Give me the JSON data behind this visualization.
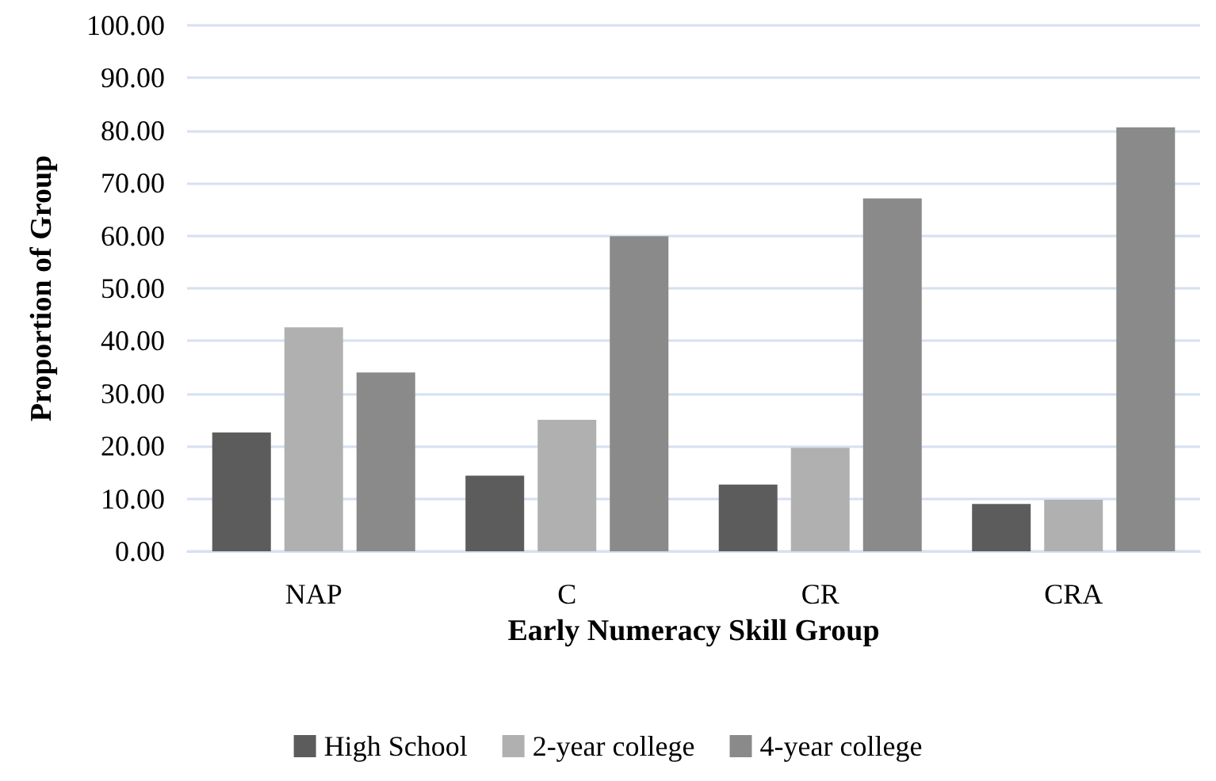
{
  "chart_data": {
    "type": "bar",
    "xlabel": "Early Numeracy Skill Group",
    "ylabel": "Proportion of Group",
    "categories": [
      "NAP",
      "C",
      "CR",
      "CRA"
    ],
    "series": [
      {
        "name": "High School",
        "color": "#5c5c5c",
        "values": [
          22.6,
          14.4,
          12.7,
          9.0
        ]
      },
      {
        "name": "2-year college",
        "color": "#b0b0b0",
        "values": [
          42.6,
          25.0,
          19.7,
          9.8
        ]
      },
      {
        "name": "4-year college",
        "color": "#8a8a8a",
        "values": [
          34.0,
          59.9,
          67.1,
          80.6
        ]
      }
    ],
    "ylim": [
      0,
      100
    ],
    "yticks": [
      {
        "value": 0,
        "label": "0.00"
      },
      {
        "value": 10,
        "label": "10.00"
      },
      {
        "value": 20,
        "label": "20.00"
      },
      {
        "value": 30,
        "label": "30.00"
      },
      {
        "value": 40,
        "label": "40.00"
      },
      {
        "value": 50,
        "label": "50.00"
      },
      {
        "value": 60,
        "label": "60.00"
      },
      {
        "value": 70,
        "label": "70.00"
      },
      {
        "value": 80,
        "label": "80.00"
      },
      {
        "value": 90,
        "label": "90.00"
      },
      {
        "value": 100,
        "label": "100.00"
      }
    ],
    "grid": "y",
    "legend": "bottom"
  }
}
